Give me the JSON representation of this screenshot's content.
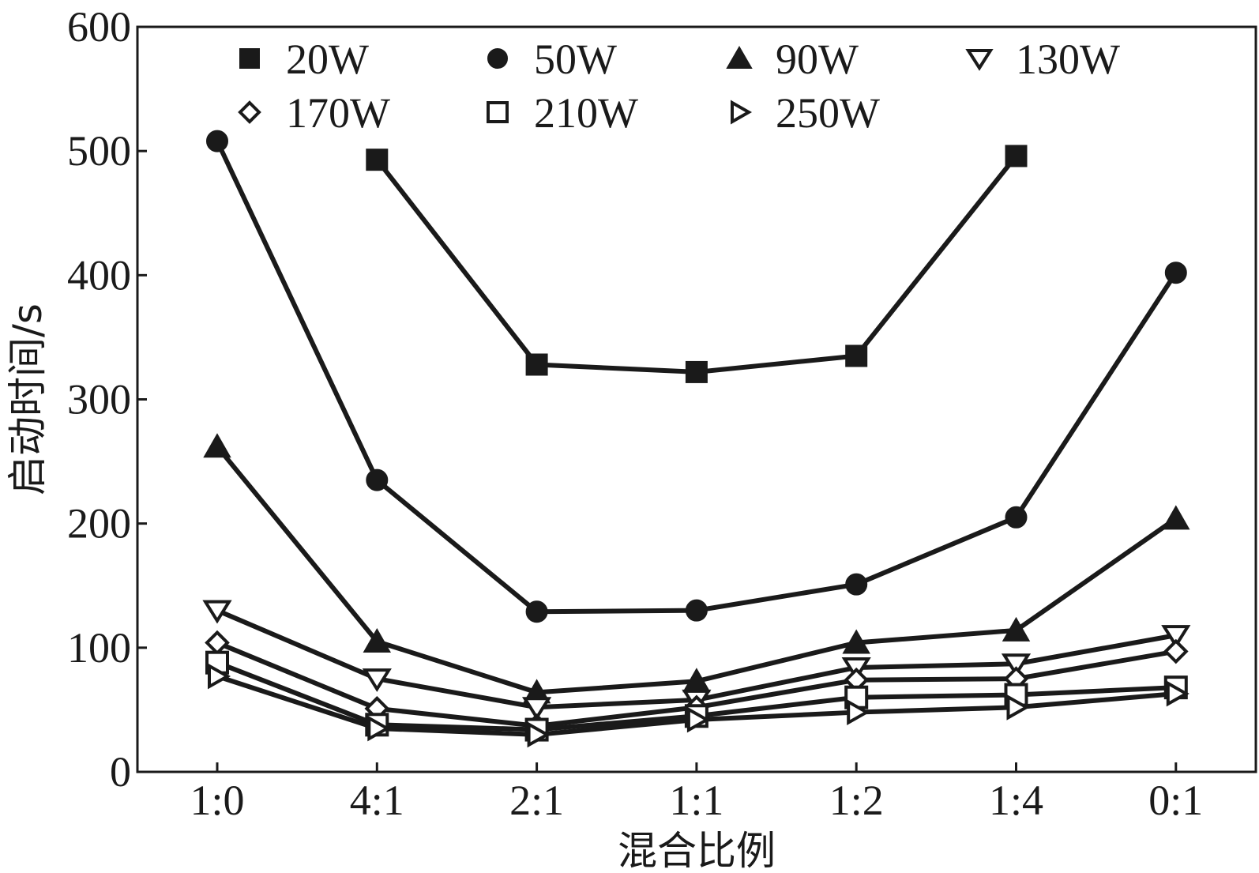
{
  "chart_data": {
    "type": "line",
    "xlabel": "混合比例",
    "ylabel": "启动时间/s",
    "categories": [
      "1:0",
      "4:1",
      "2:1",
      "1:1",
      "1:2",
      "1:4",
      "0:1"
    ],
    "yticks": [
      0,
      100,
      200,
      300,
      400,
      500,
      600
    ],
    "ylim": [
      0,
      600
    ],
    "grid": false,
    "legend_position": "top",
    "color": "#1a1a1a",
    "series": [
      {
        "name": "20W",
        "marker": "square-filled",
        "values": [
          null,
          493,
          328,
          322,
          335,
          496,
          null
        ]
      },
      {
        "name": "50W",
        "marker": "circle-filled",
        "values": [
          508,
          235,
          129,
          130,
          151,
          205,
          402
        ]
      },
      {
        "name": "90W",
        "marker": "triangle-up-filled",
        "values": [
          262,
          105,
          64,
          73,
          104,
          114,
          204
        ]
      },
      {
        "name": "130W",
        "marker": "triangle-down-open",
        "values": [
          130,
          75,
          52,
          58,
          84,
          87,
          110
        ]
      },
      {
        "name": "170W",
        "marker": "diamond-open",
        "values": [
          104,
          51,
          37,
          52,
          74,
          75,
          97
        ]
      },
      {
        "name": "210W",
        "marker": "square-open",
        "values": [
          88,
          38,
          34,
          45,
          60,
          62,
          68
        ]
      },
      {
        "name": "250W",
        "marker": "triangle-right-open",
        "values": [
          77,
          35,
          30,
          42,
          48,
          52,
          63
        ]
      }
    ]
  }
}
